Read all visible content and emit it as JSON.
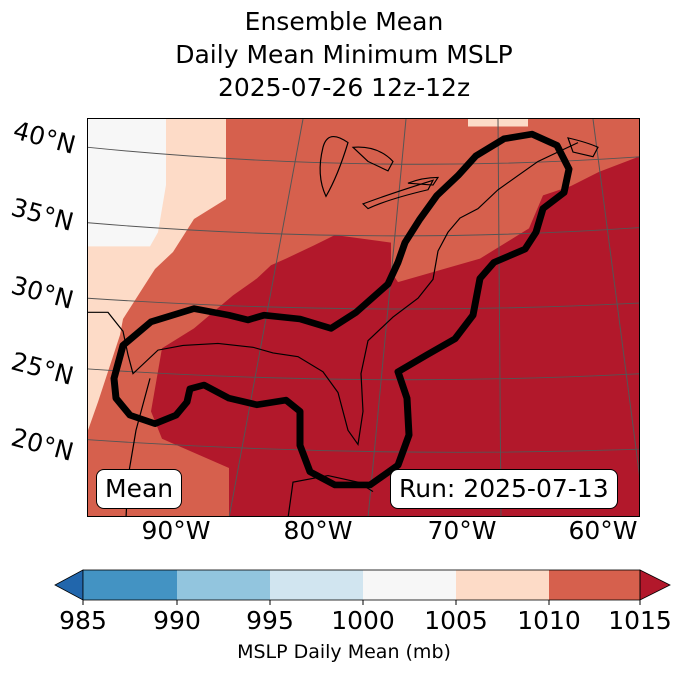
{
  "title": {
    "line1": "Ensemble Mean",
    "line2": "Daily Mean Minimum MSLP",
    "line3": "2025-07-26 12z-12z"
  },
  "map": {
    "lat_labels": [
      "40°N",
      "35°N",
      "30°N",
      "25°N",
      "20°N"
    ],
    "lon_labels": [
      "90°W",
      "80°W",
      "70°W",
      "60°W"
    ],
    "mean_label": "Mean",
    "run_label": "Run: 2025-07-13",
    "contour_color": "#000000"
  },
  "colorbar": {
    "ticks": [
      "985",
      "990",
      "995",
      "1000",
      "1005",
      "1010",
      "1015"
    ],
    "label": "MSLP Daily Mean (mb)",
    "colors": {
      "under": "#2166ac",
      "c985": "#4393c3",
      "c990": "#92c5de",
      "c995": "#d1e5f0",
      "c1000": "#f7f7f7",
      "c1005": "#fddbc7",
      "c1010": "#d6604d",
      "over": "#b2182b"
    }
  }
}
